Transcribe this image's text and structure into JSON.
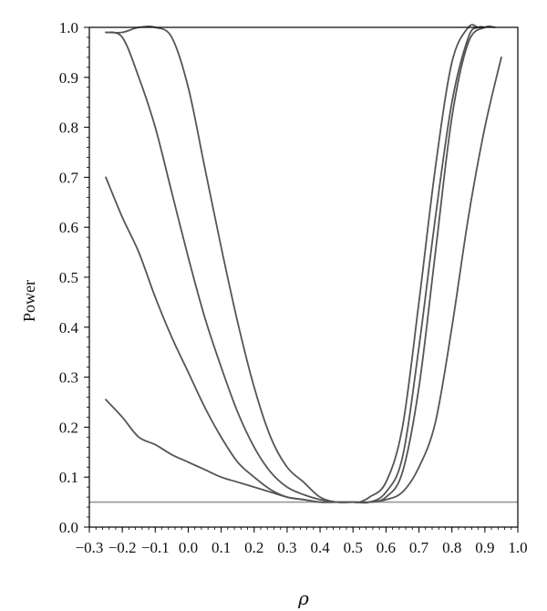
{
  "chart_data": {
    "type": "line",
    "title": "",
    "xlabel": "ρ",
    "ylabel": "Power",
    "xlim": [
      -0.3,
      1.0
    ],
    "ylim": [
      0.0,
      1.0
    ],
    "grid": false,
    "legend": "none",
    "x_ticks": [
      "−0.3",
      "−0.2",
      "−0.1",
      "0.0",
      "0.1",
      "0.2",
      "0.3",
      "0.4",
      "0.5",
      "0.6",
      "0.7",
      "0.8",
      "0.9",
      "1.0"
    ],
    "x_tick_values": [
      -0.3,
      -0.2,
      -0.1,
      0.0,
      0.1,
      0.2,
      0.3,
      0.4,
      0.5,
      0.6,
      0.7,
      0.8,
      0.9,
      1.0
    ],
    "y_ticks": [
      "0.0",
      "0.1",
      "0.2",
      "0.3",
      "0.4",
      "0.5",
      "0.6",
      "0.7",
      "0.8",
      "0.9",
      "1.0"
    ],
    "y_tick_values": [
      0.0,
      0.1,
      0.2,
      0.3,
      0.4,
      0.5,
      0.6,
      0.7,
      0.8,
      0.9,
      1.0
    ],
    "reference_line": {
      "y": 0.05,
      "color": "#999999"
    },
    "line_color": "#555555",
    "series": [
      {
        "x": [
          -0.25,
          -0.2,
          -0.15,
          -0.1,
          -0.05,
          0.0,
          0.05,
          0.1,
          0.15,
          0.2,
          0.25,
          0.3,
          0.35,
          0.4,
          0.45,
          0.5,
          0.52,
          0.55,
          0.6,
          0.65,
          0.7,
          0.75,
          0.8,
          0.85,
          0.88,
          0.9
        ],
        "y": [
          0.99,
          0.99,
          1.0,
          1.0,
          0.98,
          0.88,
          0.72,
          0.56,
          0.41,
          0.28,
          0.18,
          0.12,
          0.09,
          0.06,
          0.05,
          0.05,
          0.05,
          0.06,
          0.09,
          0.2,
          0.45,
          0.72,
          0.93,
          1.0,
          1.0,
          1.0
        ]
      },
      {
        "x": [
          -0.25,
          -0.2,
          -0.15,
          -0.1,
          -0.05,
          0.0,
          0.05,
          0.1,
          0.15,
          0.2,
          0.25,
          0.3,
          0.35,
          0.4,
          0.45,
          0.5,
          0.55,
          0.6,
          0.65,
          0.7,
          0.75,
          0.8,
          0.85,
          0.88,
          0.9
        ],
        "y": [
          0.99,
          0.98,
          0.9,
          0.8,
          0.67,
          0.54,
          0.42,
          0.32,
          0.23,
          0.16,
          0.11,
          0.08,
          0.065,
          0.055,
          0.05,
          0.05,
          0.05,
          0.07,
          0.14,
          0.36,
          0.62,
          0.85,
          0.98,
          1.0,
          1.0
        ]
      },
      {
        "x": [
          -0.25,
          -0.2,
          -0.15,
          -0.1,
          -0.05,
          0.0,
          0.05,
          0.1,
          0.15,
          0.2,
          0.25,
          0.3,
          0.35,
          0.4,
          0.45,
          0.5,
          0.55,
          0.6,
          0.65,
          0.7,
          0.75,
          0.8,
          0.85,
          0.9,
          0.93
        ],
        "y": [
          0.7,
          0.62,
          0.55,
          0.46,
          0.38,
          0.31,
          0.24,
          0.18,
          0.13,
          0.1,
          0.075,
          0.06,
          0.055,
          0.05,
          0.05,
          0.05,
          0.05,
          0.06,
          0.11,
          0.28,
          0.55,
          0.82,
          0.97,
          1.0,
          1.0
        ]
      },
      {
        "x": [
          -0.25,
          -0.2,
          -0.15,
          -0.1,
          -0.05,
          0.0,
          0.05,
          0.1,
          0.15,
          0.2,
          0.25,
          0.3,
          0.35,
          0.4,
          0.45,
          0.5,
          0.55,
          0.6,
          0.65,
          0.7,
          0.75,
          0.8,
          0.85,
          0.9,
          0.95
        ],
        "y": [
          0.255,
          0.22,
          0.18,
          0.165,
          0.145,
          0.13,
          0.115,
          0.1,
          0.09,
          0.08,
          0.07,
          0.06,
          0.055,
          0.05,
          0.05,
          0.05,
          0.05,
          0.055,
          0.07,
          0.12,
          0.21,
          0.4,
          0.62,
          0.8,
          0.94
        ]
      }
    ]
  }
}
